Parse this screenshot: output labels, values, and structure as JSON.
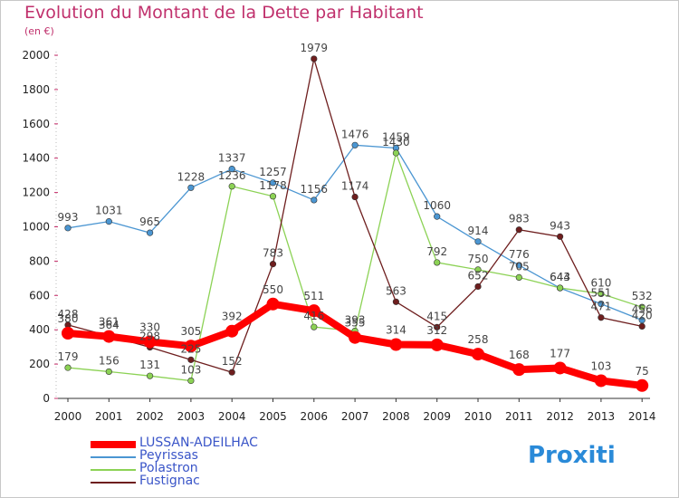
{
  "title": "Evolution du Montant de la Dette par Habitant",
  "unit_label": "(en €)",
  "logo_text": "Proxiti",
  "chart_data": {
    "type": "line",
    "x": [
      "2000",
      "2001",
      "2002",
      "2003",
      "2004",
      "2005",
      "2006",
      "2007",
      "2008",
      "2009",
      "2010",
      "2011",
      "2012",
      "2013",
      "2014"
    ],
    "ylim": [
      0,
      2000
    ],
    "yticks": [
      0,
      200,
      400,
      600,
      800,
      1000,
      1200,
      1400,
      1600,
      1800,
      2000
    ],
    "grid": false,
    "legend_position": "bottom-left",
    "series": [
      {
        "name": "LUSSAN-ADEILHAC",
        "color": "#ff0000",
        "values": [
          380,
          361,
          330,
          305,
          392,
          550,
          511,
          355,
          314,
          312,
          258,
          168,
          177,
          103,
          75
        ],
        "primary": true
      },
      {
        "name": "Peyrissas",
        "color": "#4b96d2",
        "values": [
          993,
          1031,
          965,
          1228,
          1337,
          1257,
          1156,
          1476,
          1459,
          1060,
          914,
          776,
          643,
          551,
          456
        ]
      },
      {
        "name": "Polastron",
        "color": "#8cd255",
        "values": [
          179,
          156,
          131,
          103,
          1236,
          1178,
          416,
          393,
          1430,
          792,
          750,
          705,
          644,
          610,
          532
        ]
      },
      {
        "name": "Fustignac",
        "color": "#6e1e1e",
        "values": [
          428,
          364,
          298,
          225,
          152,
          783,
          1979,
          1174,
          563,
          415,
          652,
          983,
          943,
          471,
          420
        ]
      }
    ]
  }
}
